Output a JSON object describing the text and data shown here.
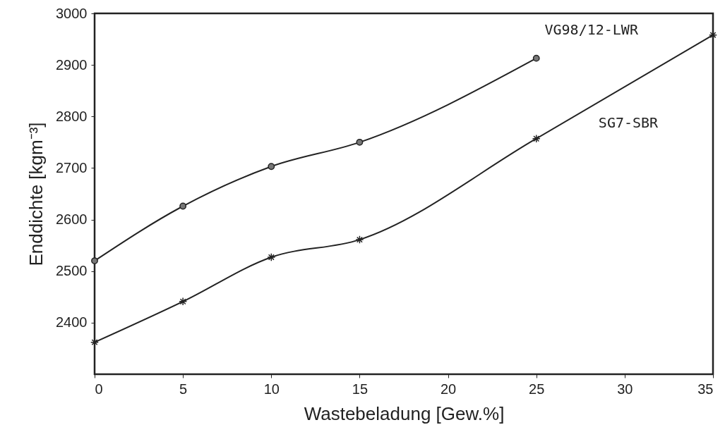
{
  "chart_data": {
    "type": "line",
    "xlabel": "Wastebeladung [Gew.%]",
    "ylabel": "Enddichte [kgm⁻³]",
    "xlim": [
      0,
      35
    ],
    "xticks": [
      0,
      5,
      10,
      15,
      20,
      25,
      30,
      35
    ],
    "ylim": [
      2300,
      3000
    ],
    "yticks": [
      2400,
      2500,
      2600,
      2700,
      2800,
      2900,
      3000
    ],
    "grid": false,
    "legend": false,
    "line_style": "solid",
    "series": [
      {
        "name": "VG98/12-LWR",
        "color": "#222222",
        "marker": "circle",
        "x": [
          0,
          5,
          10,
          15,
          25
        ],
        "values": [
          2520,
          2626,
          2703,
          2750,
          2913
        ]
      },
      {
        "name": "SG7-SBR",
        "color": "#222222",
        "marker": "cross",
        "x": [
          0,
          5,
          10,
          15,
          25,
          35
        ],
        "values": [
          2362,
          2441,
          2527,
          2561,
          2757,
          2958
        ]
      }
    ]
  }
}
